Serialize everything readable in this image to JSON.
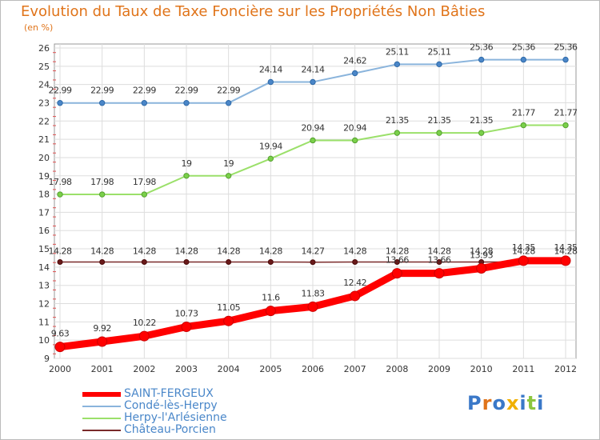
{
  "header": {
    "title": "Evolution du Taux de Taxe Foncière sur les Propriétés Non Bâties",
    "unit": "(en %)"
  },
  "logo": {
    "text": "Proxiti",
    "colors": [
      "#3a78c8",
      "#e0741a",
      "#3a78c8",
      "#f0b000",
      "#3a78c8",
      "#8cc63f",
      "#3a78c8"
    ]
  },
  "chart_data": {
    "type": "line",
    "x": [
      "2000",
      "2001",
      "2002",
      "2003",
      "2004",
      "2005",
      "2006",
      "2007",
      "2008",
      "2009",
      "2010",
      "2011",
      "2012"
    ],
    "ylim": [
      9,
      26
    ],
    "yticks": [
      9,
      10,
      11,
      12,
      13,
      14,
      15,
      16,
      17,
      18,
      19,
      20,
      21,
      22,
      23,
      24,
      25,
      26
    ],
    "grid": true,
    "legend_position": "bottom-left",
    "series": [
      {
        "name": "SAINT-FERGEUX",
        "color": "#ff0000",
        "values": [
          9.63,
          9.92,
          10.22,
          10.73,
          11.05,
          11.6,
          11.83,
          12.42,
          13.66,
          13.66,
          13.93,
          14.35,
          14.35
        ],
        "labels": [
          "9.63",
          "9.92",
          "10.22",
          "10.73",
          "11.05",
          "11.6",
          "11.83",
          "12.42",
          "13.66",
          "13.66",
          "13.93",
          "14.35",
          "14.35"
        ]
      },
      {
        "name": "Condé-lès-Herpy",
        "color": "#8ab4dc",
        "values": [
          22.99,
          22.99,
          22.99,
          22.99,
          22.99,
          24.14,
          24.14,
          24.62,
          25.11,
          25.11,
          25.36,
          25.36,
          25.36
        ],
        "labels": [
          "22.99",
          "22.99",
          "22.99",
          "22.99",
          "22.99",
          "24.14",
          "24.14",
          "24.62",
          "25.11",
          "25.11",
          "25.36",
          "25.36",
          "25.36"
        ]
      },
      {
        "name": "Herpy-l'Arlésienne",
        "color": "#9be06a",
        "values": [
          17.98,
          17.98,
          17.98,
          19,
          19,
          19.94,
          20.94,
          20.94,
          21.35,
          21.35,
          21.35,
          21.77,
          21.77
        ],
        "labels": [
          "17.98",
          "17.98",
          "17.98",
          "19",
          "19",
          "19.94",
          "20.94",
          "20.94",
          "21.35",
          "21.35",
          "21.35",
          "21.77",
          "21.77"
        ]
      },
      {
        "name": "Château-Porcien",
        "color": "#7a2a2a",
        "values": [
          14.28,
          14.28,
          14.28,
          14.28,
          14.28,
          14.28,
          14.27,
          14.28,
          14.28,
          14.28,
          14.28,
          14.28,
          14.28
        ],
        "labels": [
          "14.28",
          "14.28",
          "14.28",
          "14.28",
          "14.28",
          "14.28",
          "14.27",
          "14.28",
          "14.28",
          "14.28",
          "14.28",
          "14.28",
          "14.28"
        ]
      }
    ]
  }
}
